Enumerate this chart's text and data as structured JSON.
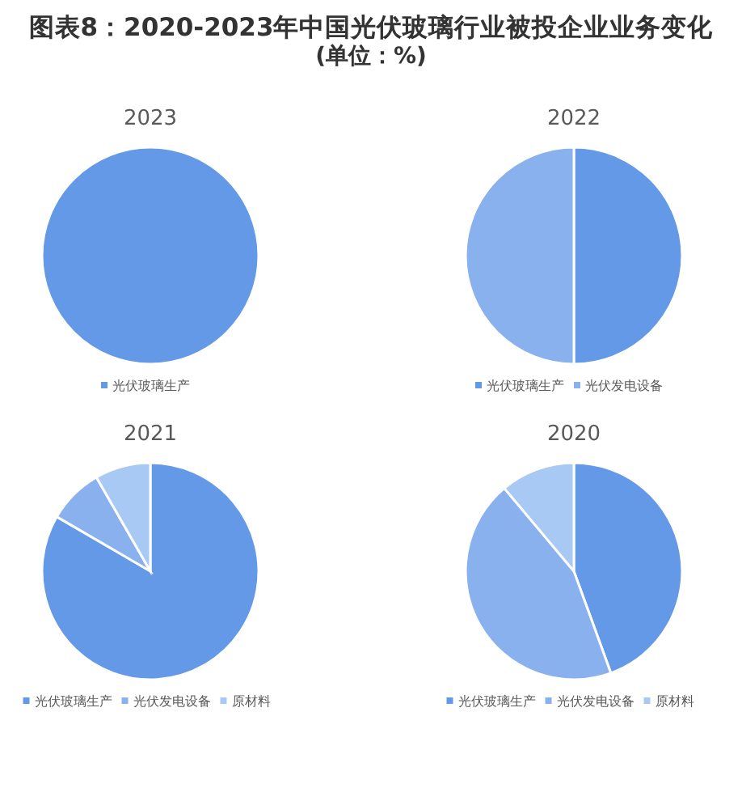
{
  "chart_data": [
    {
      "type": "pie",
      "title": "2023",
      "annotations": [
        "图表8：2020-2023年中国光伏玻璃行业被投企业业务变化",
        "(单位：%)"
      ],
      "categories": [
        "光伏玻璃生产"
      ],
      "values": [
        100
      ],
      "colors": [
        "#6399e6"
      ],
      "legend": "bottom"
    },
    {
      "type": "pie",
      "title": "2022",
      "categories": [
        "光伏玻璃生产",
        "光伏发电设备"
      ],
      "values": [
        50,
        50
      ],
      "colors": [
        "#6399e6",
        "#89b1ee"
      ],
      "legend": "bottom"
    },
    {
      "type": "pie",
      "title": "2021",
      "categories": [
        "光伏玻璃生产",
        "光伏发电设备",
        "原材料"
      ],
      "values": [
        83.3,
        8.3,
        8.3
      ],
      "colors": [
        "#6399e6",
        "#89b1ee",
        "#a9c9f5"
      ],
      "legend": "bottom"
    },
    {
      "type": "pie",
      "title": "2020",
      "categories": [
        "光伏玻璃生产",
        "光伏发电设备",
        "原材料"
      ],
      "values": [
        44.4,
        44.4,
        11.1
      ],
      "colors": [
        "#6399e6",
        "#89b1ee",
        "#a9c9f5"
      ],
      "legend": "bottom"
    }
  ]
}
